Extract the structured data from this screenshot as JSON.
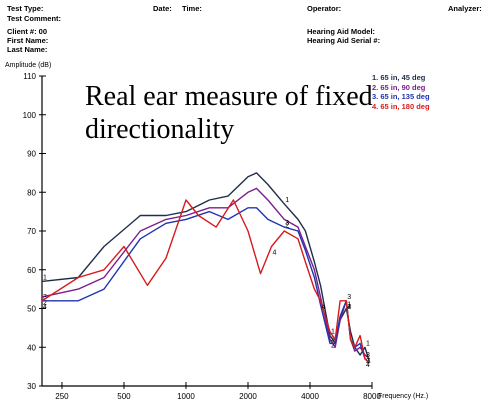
{
  "header": {
    "test_type": "Test Type:",
    "date": "Date:",
    "time": "Time:",
    "operator": "Operator:",
    "analyzer": "Analyzer:",
    "test_comment": "Test Comment:",
    "client": "Client #: 00",
    "first_name": "First Name:",
    "last_name": "Last Name:",
    "hearing_aid_model": "Hearing Aid Model:",
    "hearing_aid_serial": "Hearing Aid Serial #:"
  },
  "colors": {
    "series1": "#1f2f4a",
    "series2": "#7a1f8f",
    "series3": "#1f34b0",
    "series4": "#d61c1c",
    "axis": "#000000"
  },
  "chart_data": {
    "type": "line",
    "title": "Real ear measure of fixed directionality",
    "ylabel": "Amplitude (dB)",
    "xlabel": "Frequency (Hz.)",
    "ylim": [
      30,
      110
    ],
    "xlim": [
      200,
      8000
    ],
    "x_scale": "log",
    "y_ticks": [
      30,
      40,
      50,
      60,
      70,
      80,
      90,
      100,
      110
    ],
    "x_ticks": [
      250,
      500,
      1000,
      2000,
      4000,
      8000
    ],
    "grid": false,
    "legend_position": "top-right",
    "series": [
      {
        "name": "1. 65 in, 45 deg",
        "marker": "1",
        "x": [
          200,
          300,
          400,
          600,
          800,
          1000,
          1300,
          1600,
          2000,
          2200,
          2500,
          3000,
          3500,
          3800,
          4200,
          4500,
          5000,
          5300,
          5600,
          6000,
          6300,
          6600,
          7000,
          7400,
          7800
        ],
        "y": [
          57,
          58,
          66,
          74,
          74,
          75,
          78,
          79,
          84,
          85,
          82,
          77,
          73,
          70,
          62,
          56,
          43,
          41,
          47,
          50,
          44,
          40,
          38,
          40,
          36
        ]
      },
      {
        "name": "2. 65 in, 90 deg",
        "marker": "2",
        "x": [
          200,
          300,
          400,
          600,
          800,
          1000,
          1300,
          1600,
          2000,
          2200,
          2500,
          3000,
          3500,
          3800,
          4200,
          4500,
          5000,
          5300,
          5600,
          6000,
          6300,
          6600,
          7000,
          7400,
          7800
        ],
        "y": [
          53,
          55,
          58,
          70,
          73,
          74,
          76,
          76,
          80,
          81,
          78,
          73,
          71,
          66,
          60,
          53,
          42,
          40,
          47,
          52,
          42,
          39,
          40,
          38,
          37
        ]
      },
      {
        "name": "3. 65 in, 135 deg",
        "marker": "3",
        "x": [
          200,
          300,
          400,
          600,
          800,
          1000,
          1300,
          1600,
          2000,
          2200,
          2500,
          3000,
          3500,
          3800,
          4200,
          4500,
          5000,
          5300,
          5600,
          6000,
          6300,
          6600,
          7000,
          7400,
          7800
        ],
        "y": [
          52,
          52,
          55,
          68,
          72,
          73,
          75,
          73,
          76,
          76,
          73,
          71,
          70,
          65,
          58,
          51,
          41,
          41,
          48,
          52,
          42,
          40,
          41,
          37,
          36
        ]
      },
      {
        "name": "4. 65 in, 180 deg",
        "marker": "4",
        "x": [
          200,
          300,
          400,
          500,
          650,
          800,
          1000,
          1150,
          1400,
          1700,
          2000,
          2300,
          2600,
          3000,
          3500,
          3800,
          4200,
          4500,
          5000,
          5300,
          5600,
          6000,
          6300,
          6600,
          7000,
          7400,
          7800
        ],
        "y": [
          52,
          58,
          60,
          66,
          56,
          63,
          78,
          74,
          71,
          78,
          70,
          59,
          66,
          70,
          68,
          62,
          55,
          52,
          44,
          42,
          52,
          52,
          42,
          40,
          43,
          37,
          36
        ]
      }
    ]
  }
}
